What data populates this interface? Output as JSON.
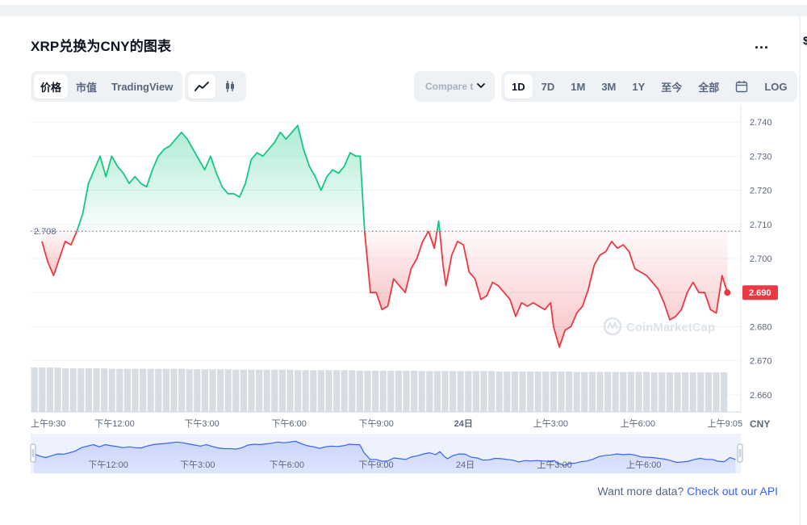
{
  "header": {
    "title": "XRP兑换为CNY的图表",
    "more_label": "..."
  },
  "view_tabs": [
    {
      "label": "价格",
      "active": true
    },
    {
      "label": "市值",
      "active": false
    },
    {
      "label": "TradingView",
      "active": false
    }
  ],
  "chart_style_icons": [
    {
      "icon": "line-chart-icon",
      "active": true
    },
    {
      "icon": "candlestick-icon",
      "active": false
    }
  ],
  "compare": {
    "label": "Compare t",
    "icon": "chevron-down-icon"
  },
  "range_tabs": [
    {
      "label": "1D",
      "active": true
    },
    {
      "label": "7D",
      "active": false
    },
    {
      "label": "1M",
      "active": false
    },
    {
      "label": "3M",
      "active": false
    },
    {
      "label": "1Y",
      "active": false
    },
    {
      "label": "至今",
      "active": false
    },
    {
      "label": "全部",
      "active": false
    }
  ],
  "calendar_icon": "calendar-icon",
  "log_label": "LOG",
  "watermark": "CoinMarketCap",
  "footer": {
    "text": "Want more data?",
    "link": "Check out our API"
  },
  "colors": {
    "up": "#16c784",
    "down": "#ea3943",
    "accent": "#3861fb"
  },
  "chart_data": {
    "type": "line",
    "currency_label": "CNY",
    "open_price": 2.708,
    "open_price_label": "2.708",
    "last_price": 2.69,
    "last_price_label": "2.690",
    "y_range": [
      2.655,
      2.745
    ],
    "y_ticks": [
      "2.740",
      "2.730",
      "2.720",
      "2.710",
      "2.700",
      "2.690",
      "2.680",
      "2.670",
      "2.660"
    ],
    "y_tick_values": [
      2.74,
      2.73,
      2.72,
      2.71,
      2.7,
      2.69,
      2.68,
      2.67,
      2.66
    ],
    "x_range_hours": [
      0,
      23.6
    ],
    "x_ticks": [
      {
        "label": "上午9:30",
        "t": 0,
        "bold": false
      },
      {
        "label": "下午12:00",
        "t": 2.5,
        "bold": false
      },
      {
        "label": "下午3:00",
        "t": 5.5,
        "bold": false
      },
      {
        "label": "下午6:00",
        "t": 8.5,
        "bold": false
      },
      {
        "label": "下午9:00",
        "t": 11.5,
        "bold": false
      },
      {
        "label": "24日",
        "t": 14.5,
        "bold": true
      },
      {
        "label": "上午3:00",
        "t": 17.5,
        "bold": false
      },
      {
        "label": "上午6:00",
        "t": 20.5,
        "bold": false
      },
      {
        "label": "上午9:05",
        "t": 23.58,
        "bold": false
      }
    ],
    "navigator_ticks": [
      {
        "label": "下午12:00",
        "t": 2.5
      },
      {
        "label": "下午3:00",
        "t": 5.5
      },
      {
        "label": "下午6:00",
        "t": 8.5
      },
      {
        "label": "下午9:00",
        "t": 11.5
      },
      {
        "label": "24日",
        "t": 14.5
      },
      {
        "label": "上午3:00",
        "t": 17.5
      },
      {
        "label": "上午6:00",
        "t": 20.5
      }
    ],
    "series": [
      {
        "values": [
          [
            0,
            2.705
          ],
          [
            0.2,
            2.699
          ],
          [
            0.4,
            2.695
          ],
          [
            0.6,
            2.7
          ],
          [
            0.8,
            2.705
          ],
          [
            1.0,
            2.704
          ],
          [
            1.2,
            2.708
          ],
          [
            1.4,
            2.713
          ],
          [
            1.6,
            2.722
          ],
          [
            1.8,
            2.726
          ],
          [
            2.0,
            2.73
          ],
          [
            2.2,
            2.724
          ],
          [
            2.4,
            2.73
          ],
          [
            2.6,
            2.727
          ],
          [
            2.8,
            2.725
          ],
          [
            3.0,
            2.722
          ],
          [
            3.2,
            2.724
          ],
          [
            3.4,
            2.722
          ],
          [
            3.6,
            2.721
          ],
          [
            3.8,
            2.726
          ],
          [
            4.0,
            2.73
          ],
          [
            4.2,
            2.732
          ],
          [
            4.4,
            2.733
          ],
          [
            4.6,
            2.735
          ],
          [
            4.8,
            2.737
          ],
          [
            5.0,
            2.735
          ],
          [
            5.2,
            2.732
          ],
          [
            5.4,
            2.729
          ],
          [
            5.6,
            2.726
          ],
          [
            5.8,
            2.73
          ],
          [
            6.0,
            2.725
          ],
          [
            6.2,
            2.721
          ],
          [
            6.4,
            2.719
          ],
          [
            6.6,
            2.719
          ],
          [
            6.8,
            2.718
          ],
          [
            7.0,
            2.722
          ],
          [
            7.2,
            2.729
          ],
          [
            7.4,
            2.731
          ],
          [
            7.6,
            2.73
          ],
          [
            7.8,
            2.732
          ],
          [
            8.0,
            2.734
          ],
          [
            8.2,
            2.737
          ],
          [
            8.4,
            2.735
          ],
          [
            8.6,
            2.737
          ],
          [
            8.8,
            2.739
          ],
          [
            9.0,
            2.732
          ],
          [
            9.2,
            2.727
          ],
          [
            9.4,
            2.724
          ],
          [
            9.6,
            2.72
          ],
          [
            9.8,
            2.724
          ],
          [
            10.0,
            2.726
          ],
          [
            10.2,
            2.725
          ],
          [
            10.4,
            2.727
          ],
          [
            10.6,
            2.731
          ],
          [
            10.8,
            2.73
          ],
          [
            10.95,
            2.73
          ],
          [
            11.1,
            2.708
          ],
          [
            11.3,
            2.69
          ],
          [
            11.5,
            2.69
          ],
          [
            11.7,
            2.685
          ],
          [
            11.9,
            2.686
          ],
          [
            12.1,
            2.694
          ],
          [
            12.3,
            2.692
          ],
          [
            12.5,
            2.69
          ],
          [
            12.7,
            2.697
          ],
          [
            12.9,
            2.7
          ],
          [
            13.1,
            2.705
          ],
          [
            13.3,
            2.708
          ],
          [
            13.5,
            2.703
          ],
          [
            13.65,
            2.711
          ],
          [
            13.8,
            2.698
          ],
          [
            13.9,
            2.692
          ],
          [
            14.1,
            2.701
          ],
          [
            14.3,
            2.705
          ],
          [
            14.5,
            2.704
          ],
          [
            14.7,
            2.696
          ],
          [
            14.9,
            2.694
          ],
          [
            15.1,
            2.688
          ],
          [
            15.3,
            2.689
          ],
          [
            15.5,
            2.693
          ],
          [
            15.7,
            2.692
          ],
          [
            15.9,
            2.69
          ],
          [
            16.1,
            2.688
          ],
          [
            16.3,
            2.683
          ],
          [
            16.5,
            2.687
          ],
          [
            16.7,
            2.686
          ],
          [
            16.9,
            2.687
          ],
          [
            17.1,
            2.686
          ],
          [
            17.3,
            2.685
          ],
          [
            17.5,
            2.687
          ],
          [
            17.6,
            2.68
          ],
          [
            17.8,
            2.674
          ],
          [
            18.0,
            2.679
          ],
          [
            18.2,
            2.68
          ],
          [
            18.4,
            2.684
          ],
          [
            18.6,
            2.686
          ],
          [
            18.8,
            2.691
          ],
          [
            19.0,
            2.698
          ],
          [
            19.2,
            2.701
          ],
          [
            19.4,
            2.702
          ],
          [
            19.6,
            2.705
          ],
          [
            19.8,
            2.703
          ],
          [
            20.0,
            2.704
          ],
          [
            20.2,
            2.702
          ],
          [
            20.4,
            2.697
          ],
          [
            20.6,
            2.696
          ],
          [
            20.8,
            2.695
          ],
          [
            21.0,
            2.693
          ],
          [
            21.2,
            2.691
          ],
          [
            21.4,
            2.687
          ],
          [
            21.6,
            2.682
          ],
          [
            21.8,
            2.683
          ],
          [
            22.0,
            2.685
          ],
          [
            22.2,
            2.69
          ],
          [
            22.4,
            2.693
          ],
          [
            22.6,
            2.69
          ],
          [
            22.8,
            2.69
          ],
          [
            23.0,
            2.685
          ],
          [
            23.2,
            2.684
          ],
          [
            23.4,
            2.695
          ],
          [
            23.58,
            2.69
          ]
        ]
      }
    ],
    "volume": [
      1.0,
      1.0,
      1.0,
      1.0,
      0.98,
      0.98,
      0.98,
      0.98,
      0.98,
      0.98,
      0.97,
      0.97,
      0.97,
      0.97,
      0.97,
      0.97,
      0.97,
      0.97,
      0.97,
      0.97,
      0.96,
      0.96,
      0.96,
      0.96,
      0.96,
      0.96,
      0.95,
      0.95,
      0.95,
      0.95,
      0.95,
      0.95,
      0.95,
      0.95,
      0.94,
      0.94,
      0.94,
      0.94,
      0.94,
      0.94,
      0.94,
      0.94,
      0.93,
      0.93,
      0.93,
      0.93,
      0.93,
      0.93,
      0.93,
      0.93,
      0.92,
      0.92,
      0.92,
      0.92,
      0.92,
      0.92,
      0.92,
      0.92,
      0.92,
      0.92,
      0.91,
      0.91,
      0.91,
      0.91,
      0.91,
      0.91,
      0.91,
      0.91,
      0.91,
      0.91,
      0.9,
      0.9,
      0.9,
      0.9,
      0.9,
      0.9,
      0.9,
      0.9,
      0.9,
      0.9,
      0.89,
      0.89,
      0.89,
      0.89,
      0.89,
      0.89,
      0.89,
      0.89,
      0.89,
      0.89
    ]
  }
}
